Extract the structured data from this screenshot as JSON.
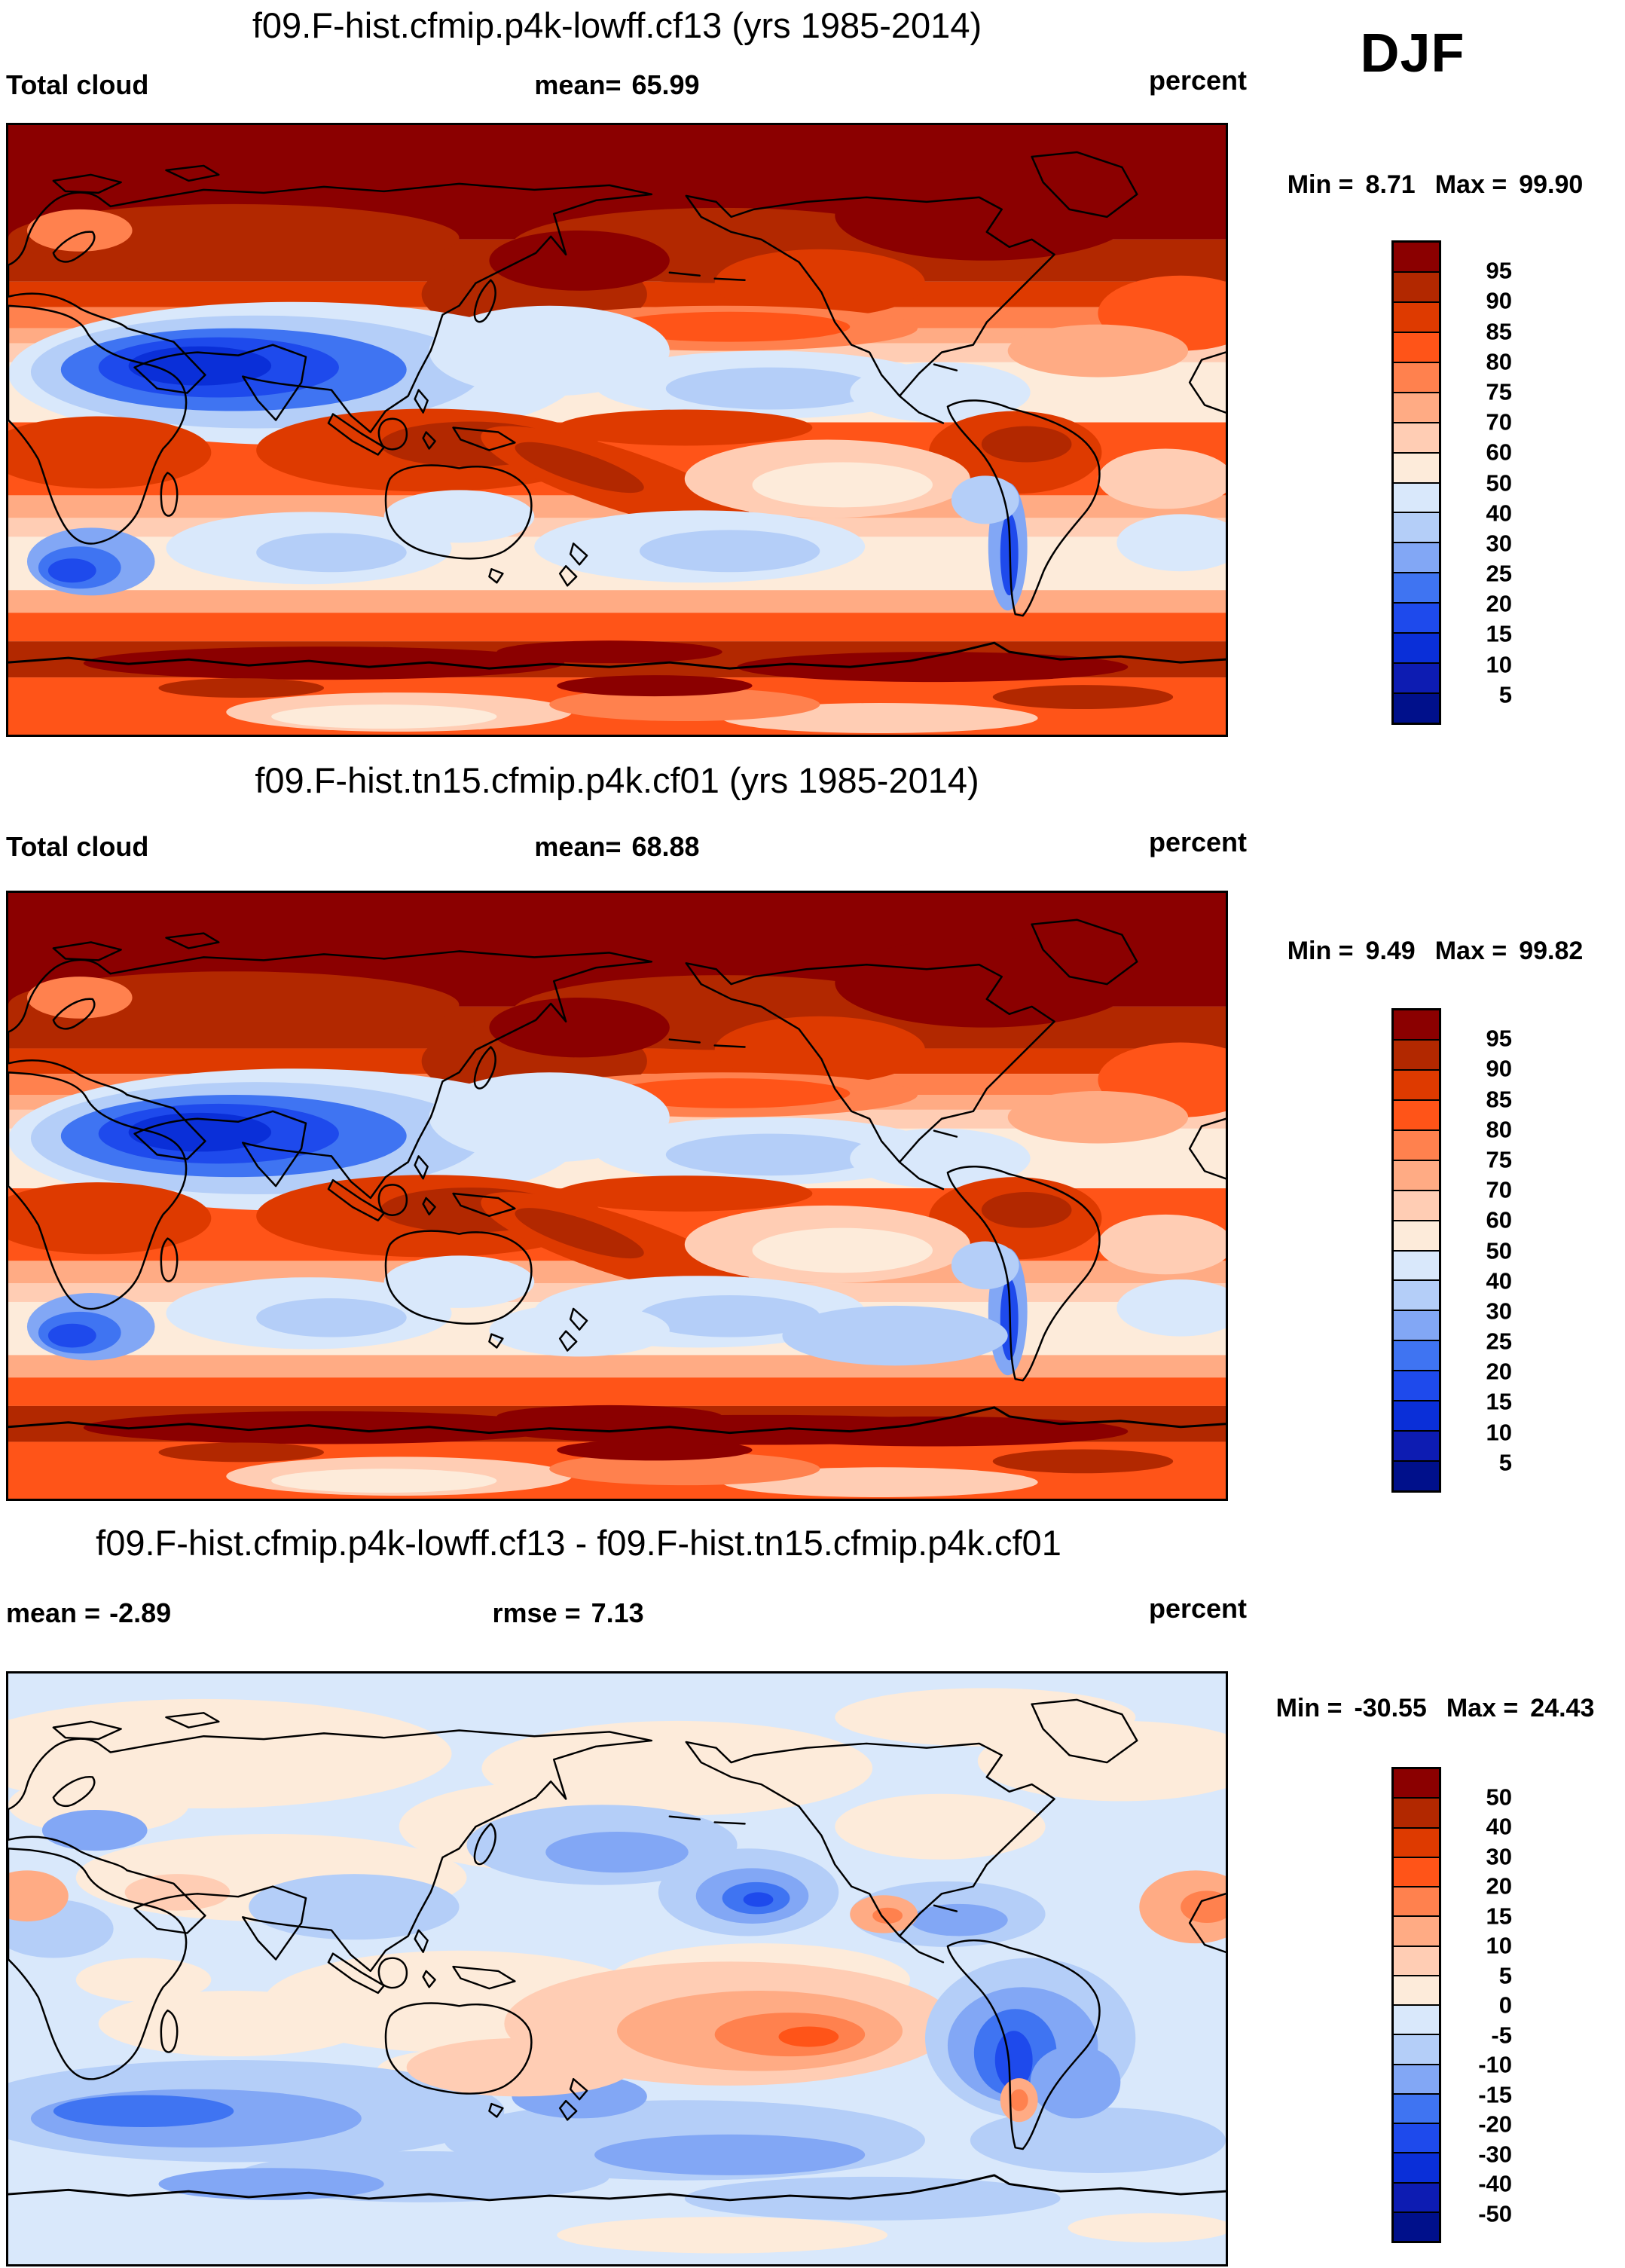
{
  "page": {
    "season": "DJF"
  },
  "palette": {
    "c1": "#8B0000",
    "c2": "#B22800",
    "c3": "#DE3A00",
    "c4": "#FF5418",
    "c5": "#FF814E",
    "c6": "#FFAB84",
    "c7": "#FFCDB4",
    "c8": "#FDEBDA",
    "c9": "#D9E8FB",
    "c10": "#B4CEF8",
    "c11": "#82A7F5",
    "c12": "#3F74F2",
    "c13": "#1E4AEC",
    "c14": "#0A2FD8",
    "c15": "#0D1CB2",
    "c16": "#00108B"
  },
  "panels": [
    {
      "title": "f09.F-hist.cfmip.p4k-lowff.cf13 (yrs 1985-2014)",
      "variable": "Total cloud",
      "mean_label": "mean=",
      "mean_value": "65.99",
      "units": "percent",
      "min_label": "Min =",
      "min_value": "8.71",
      "max_label": "Max =",
      "max_value": "99.90",
      "colorbar": {
        "labels": [
          "95",
          "90",
          "85",
          "80",
          "75",
          "70",
          "60",
          "50",
          "40",
          "30",
          "25",
          "20",
          "15",
          "10",
          "5"
        ],
        "colors": [
          "c1",
          "c2",
          "c3",
          "c4",
          "c5",
          "c6",
          "c7",
          "c8",
          "c9",
          "c10",
          "c11",
          "c12",
          "c13",
          "c14",
          "c15",
          "c16"
        ]
      }
    },
    {
      "title": "f09.F-hist.tn15.cfmip.p4k.cf01 (yrs 1985-2014)",
      "variable": "Total cloud",
      "mean_label": "mean=",
      "mean_value": "68.88",
      "units": "percent",
      "min_label": "Min =",
      "min_value": "9.49",
      "max_label": "Max =",
      "max_value": "99.82",
      "colorbar": {
        "labels": [
          "95",
          "90",
          "85",
          "80",
          "75",
          "70",
          "60",
          "50",
          "40",
          "30",
          "25",
          "20",
          "15",
          "10",
          "5"
        ],
        "colors": [
          "c1",
          "c2",
          "c3",
          "c4",
          "c5",
          "c6",
          "c7",
          "c8",
          "c9",
          "c10",
          "c11",
          "c12",
          "c13",
          "c14",
          "c15",
          "c16"
        ]
      }
    },
    {
      "title": "f09.F-hist.cfmip.p4k-lowff.cf13 - f09.F-hist.tn15.cfmip.p4k.cf01",
      "mean_label": "mean =",
      "mean_value": "-2.89",
      "rmse_label": "rmse =",
      "rmse_value": "7.13",
      "units": "percent",
      "min_label": "Min =",
      "min_value": "-30.55",
      "max_label": "Max =",
      "max_value": "24.43",
      "colorbar": {
        "labels": [
          "50",
          "40",
          "30",
          "20",
          "15",
          "10",
          "5",
          "0",
          "-5",
          "-10",
          "-15",
          "-20",
          "-30",
          "-40",
          "-50"
        ],
        "colors": [
          "c1",
          "c2",
          "c3",
          "c4",
          "c5",
          "c6",
          "c7",
          "c8",
          "c9",
          "c10",
          "c11",
          "c12",
          "c13",
          "c14",
          "c15",
          "c16"
        ]
      }
    }
  ],
  "chart_data": [
    {
      "type": "heatmap",
      "subtype": "filled-contour-world-map",
      "title": "f09.F-hist.cfmip.p4k-lowff.cf13 (yrs 1985-2014)",
      "variable": "Total cloud",
      "season": "DJF",
      "units": "percent",
      "mean": 65.99,
      "min": 8.71,
      "max": 99.9,
      "contour_levels": [
        5,
        10,
        15,
        20,
        25,
        30,
        40,
        50,
        60,
        70,
        75,
        80,
        85,
        90,
        95
      ],
      "colors": [
        "#8B0000",
        "#B22800",
        "#DE3A00",
        "#FF5418",
        "#FF814E",
        "#FFAB84",
        "#FFCDB4",
        "#FDEBDA",
        "#D9E8FB",
        "#B4CEF8",
        "#82A7F5",
        "#3F74F2",
        "#1E4AEC",
        "#0A2FD8",
        "#0D1CB2",
        "#00108B"
      ],
      "extent": {
        "lon": [
          0,
          360
        ],
        "lat": [
          -90,
          90
        ]
      },
      "legend_position": "right",
      "notable_features": [
        "near-overcast (>95%) Arctic cap and 50-70S Southern Ocean storm track",
        "pronounced cloud minimum (<20%) stretching Sahara-Arabia-South Asia",
        "stratocumulus minima off Chile/Peru and southern Africa",
        "cloudy ITCZ/SPCZ bands (80-95%) across tropics",
        "relative minima (40-60%) in subtropical oceans and over Australia interior"
      ]
    },
    {
      "type": "heatmap",
      "subtype": "filled-contour-world-map",
      "title": "f09.F-hist.tn15.cfmip.p4k.cf01 (yrs 1985-2014)",
      "variable": "Total cloud",
      "season": "DJF",
      "units": "percent",
      "mean": 68.88,
      "min": 9.49,
      "max": 99.82,
      "contour_levels": [
        5,
        10,
        15,
        20,
        25,
        30,
        40,
        50,
        60,
        70,
        75,
        80,
        85,
        90,
        95
      ],
      "colors": [
        "#8B0000",
        "#B22800",
        "#DE3A00",
        "#FF5418",
        "#FF814E",
        "#FFAB84",
        "#FFCDB4",
        "#FDEBDA",
        "#D9E8FB",
        "#B4CEF8",
        "#82A7F5",
        "#3F74F2",
        "#1E4AEC",
        "#0A2FD8",
        "#0D1CB2",
        "#00108B"
      ],
      "extent": {
        "lon": [
          0,
          360
        ],
        "lat": [
          -90,
          90
        ]
      },
      "legend_position": "right",
      "notable_features": [
        "same spatial pattern as top panel but overall cloudier (mean 68.88 vs 65.99)",
        "deeper/broader Southern Ocean overcast band",
        "same dry Sahara-Arabia-South Asia minimum and eastern-boundary stratocumulus minima"
      ]
    },
    {
      "type": "heatmap",
      "subtype": "filled-contour-difference-map",
      "title": "f09.F-hist.cfmip.p4k-lowff.cf13 - f09.F-hist.tn15.cfmip.p4k.cf01",
      "variable": "Total cloud difference",
      "season": "DJF",
      "units": "percent",
      "mean": -2.89,
      "rmse": 7.13,
      "min": -30.55,
      "max": 24.43,
      "contour_levels": [
        -50,
        -40,
        -30,
        -20,
        -15,
        -10,
        -5,
        0,
        5,
        10,
        15,
        20,
        30,
        40,
        50
      ],
      "colors": [
        "#8B0000",
        "#B22800",
        "#DE3A00",
        "#FF5418",
        "#FF814E",
        "#FFAB84",
        "#FFCDB4",
        "#FDEBDA",
        "#D9E8FB",
        "#B4CEF8",
        "#82A7F5",
        "#3F74F2",
        "#1E4AEC",
        "#0A2FD8",
        "#0D1CB2",
        "#00108B"
      ],
      "extent": {
        "lon": [
          0,
          360
        ],
        "lat": [
          -90,
          90
        ]
      },
      "legend_position": "right",
      "notable_features": [
        "differences mostly weak: 0 to -10 (pale blue) over oceans, 0 to +5 (pale peach) over NH continents",
        "positive anomaly (+10 to +20) in central/south-east tropical Pacific",
        "strong negative anomalies (-20 to -30) along western South America and in NE subtropical Pacific",
        "broad -5 to -15 band over Southern Ocean"
      ]
    }
  ]
}
